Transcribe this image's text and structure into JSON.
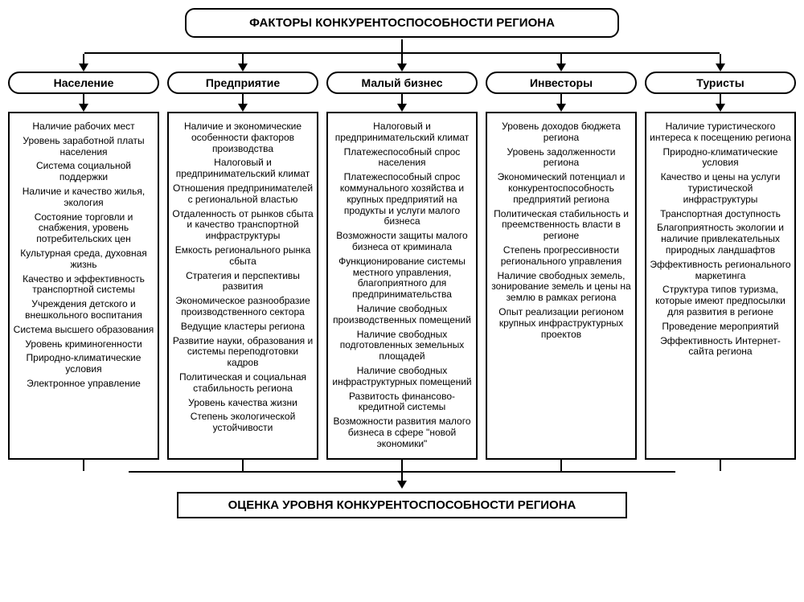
{
  "type": "flowchart",
  "background_color": "#ffffff",
  "border_color": "#000000",
  "text_color": "#000000",
  "font_family": "Arial",
  "title_fontsize": 15,
  "category_fontsize": 14,
  "item_fontsize": 12,
  "bottom_fontsize": 15,
  "top_title": "ФАКТОРЫ КОНКУРЕНТОСПОСОБНОСТИ РЕГИОНА",
  "bottom_title": "ОЦЕНКА УРОВНЯ КОНКУРЕНТОСПОСОБНОСТИ РЕГИОНА",
  "columns": [
    {
      "label": "Население",
      "items": [
        "Наличие рабочих мест",
        "Уровень заработной платы населения",
        "Система социальной поддержки",
        "Наличие и качество жилья, экология",
        "Состояние торговли и снабжения, уровень потребительских цен",
        "Культурная среда, духовная жизнь",
        "Качество и эффективность транспортной системы",
        "Учреждения детского и внешкольного воспитания",
        "Система высшего образования",
        "Уровень криминогенности",
        "Природно-климатические условия",
        "Электронное управление"
      ]
    },
    {
      "label": "Предприятие",
      "items": [
        "Наличие и экономические особенности факторов производства",
        "Налоговый и предпринимательский климат",
        "Отношения предпринимателей с региональной властью",
        "Отдаленность от рынков сбыта и качество транспортной инфраструктуры",
        "Емкость регионального рынка сбыта",
        "Стратегия и перспективы развития",
        "Экономическое разнообразие производственного сектора",
        "Ведущие кластеры региона",
        "Развитие науки, образования и системы переподготовки кадров",
        "Политическая и социальная стабильность региона",
        "Уровень качества жизни",
        "Степень экологической устойчивости"
      ]
    },
    {
      "label": "Малый бизнес",
      "items": [
        "Налоговый и предпринимательский климат",
        "Платежеспособный спрос населения",
        "Платежеспособный спрос коммунального хозяйства и крупных предприятий на продукты и услуги малого бизнеса",
        "Возможности защиты малого бизнеса от криминала",
        "Функционирование системы местного управления, благоприятного для предпринимательства",
        "Наличие свободных производственных помещений",
        "Наличие свободных подготовленных земельных площадей",
        "Наличие свободных инфраструктурных помещений",
        "Развитость финансово-кредитной системы",
        "Возможности развития малого бизнеса в сфере \"новой экономики\""
      ]
    },
    {
      "label": "Инвесторы",
      "items": [
        "Уровень доходов бюджета региона",
        "Уровень задолженности региона",
        "Экономический потенциал и конкурентоспособность предприятий региона",
        "Политическая стабильность и преемственность власти в регионе",
        "Степень прогрессивности регионального управления",
        "Наличие свободных земель, зонирование земель и цены на землю в рамках региона",
        "Опыт реализации регионом крупных инфраструктурных проектов"
      ]
    },
    {
      "label": "Туристы",
      "items": [
        "Наличие туристического интереса к посещению региона",
        "Природно-климатические условия",
        "Качество и цены на услуги туристической инфраструктуры",
        "Транспортная доступность",
        "Благоприятность экологии и наличие привлекательных природных ландшафтов",
        "Эффективность регионального маркетинга",
        "Структура типов туризма, которые имеют предпосылки для развития в регионе",
        "Проведение мероприятий",
        "Эффективность Интернет-сайта региона"
      ]
    }
  ]
}
